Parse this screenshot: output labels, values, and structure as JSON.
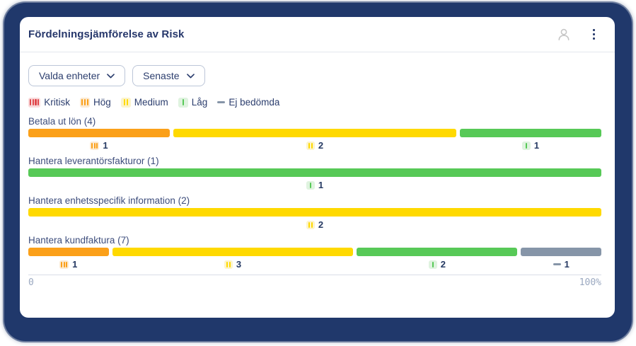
{
  "header": {
    "title": "Fördelningsjämförelse av Risk"
  },
  "toolbar": {
    "filters": [
      {
        "label": "Valda enheter"
      },
      {
        "label": "Senaste"
      }
    ]
  },
  "legend": [
    {
      "id": "kritisk",
      "label": "Kritisk",
      "bars": 4
    },
    {
      "id": "hog",
      "label": "Hög",
      "bars": 3
    },
    {
      "id": "medium",
      "label": "Medium",
      "bars": 2
    },
    {
      "id": "lag",
      "label": "Låg",
      "bars": 1
    },
    {
      "id": "ej",
      "label": "Ej bedömda",
      "bars": 0
    }
  ],
  "colors": {
    "kritisk": {
      "main": "#e0474b",
      "tint": "#f9dadb"
    },
    "hog": {
      "main": "#fba019",
      "tint": "#fcead2"
    },
    "medium": {
      "main": "#ffd900",
      "tint": "#fcf4cb"
    },
    "lag": {
      "main": "#57c957",
      "tint": "#dff3df"
    },
    "ej": {
      "main": "#8695a8",
      "tint": "#e8ecf1"
    }
  },
  "chart_data": {
    "type": "bar",
    "orientation": "horizontal-stacked",
    "title": "Fördelningsjämförelse av Risk",
    "unit": "count (segment width = share of row total)",
    "axis": {
      "start_label": "0",
      "end_label": "100%"
    },
    "legend_labels": [
      "Kritisk",
      "Hög",
      "Medium",
      "Låg",
      "Ej bedömda"
    ],
    "rows": [
      {
        "label": "Betala ut lön (4)",
        "total": 4,
        "segments": [
          {
            "level": "hog",
            "count": 1
          },
          {
            "level": "medium",
            "count": 2
          },
          {
            "level": "lag",
            "count": 1
          }
        ]
      },
      {
        "label": "Hantera leverantörsfakturor (1)",
        "total": 1,
        "segments": [
          {
            "level": "lag",
            "count": 1
          }
        ]
      },
      {
        "label": "Hantera enhetsspecifik information (2)",
        "total": 2,
        "segments": [
          {
            "level": "medium",
            "count": 2
          }
        ]
      },
      {
        "label": "Hantera kundfaktura (7)",
        "total": 7,
        "segments": [
          {
            "level": "hog",
            "count": 1
          },
          {
            "level": "medium",
            "count": 3
          },
          {
            "level": "lag",
            "count": 2
          },
          {
            "level": "ej",
            "count": 1
          }
        ]
      }
    ]
  }
}
